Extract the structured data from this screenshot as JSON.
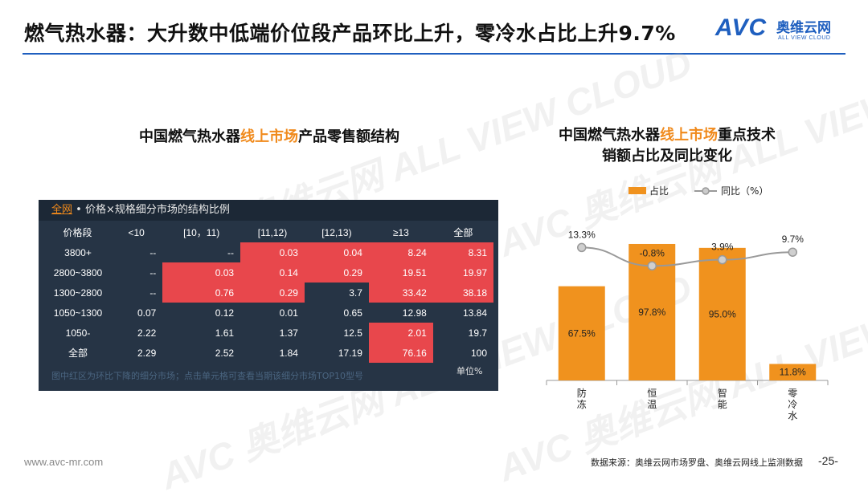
{
  "page": {
    "title": "燃气热水器：大升数中低端价位段产品环比上升，零冷水占比上升9.7%",
    "logo": {
      "avc": "AVC",
      "cn": "奥维云网",
      "en": "ALL VIEW CLOUD"
    },
    "watermark": "AVC 奥维云网 ALL VIEW CLOUD",
    "footer_url": "www.avc-mr.com",
    "footer_source": "数据来源：奥维云网市场罗盘、奥维云网线上监测数据",
    "page_number": "-25-"
  },
  "left": {
    "title_prefix": "中国燃气热水器",
    "title_highlight": "线上市场",
    "title_suffix": "产品零售额结构",
    "table_header_all": "全网",
    "table_header_rest": " • 价格×规格细分市场的结构比例",
    "note": "图中红区为环比下降的细分市场；点击单元格可查看当期该细分市场TOP10型号",
    "unit": "单位%"
  },
  "table": {
    "columns": [
      "价格段",
      "<10",
      "[10，11)",
      "[11,12)",
      "[12,13)",
      "≥13",
      "全部"
    ],
    "rows": [
      {
        "label": "3800+",
        "cells": [
          "--",
          "--",
          "0.03",
          "0.04",
          "8.24",
          "8.31"
        ],
        "red": [
          false,
          false,
          true,
          true,
          true,
          true
        ]
      },
      {
        "label": "2800~3800",
        "cells": [
          "--",
          "0.03",
          "0.14",
          "0.29",
          "19.51",
          "19.97"
        ],
        "red": [
          false,
          true,
          true,
          true,
          true,
          true
        ]
      },
      {
        "label": "1300~2800",
        "cells": [
          "--",
          "0.76",
          "0.29",
          "3.7",
          "33.42",
          "38.18"
        ],
        "red": [
          false,
          true,
          true,
          false,
          true,
          true
        ]
      },
      {
        "label": "1050~1300",
        "cells": [
          "0.07",
          "0.12",
          "0.01",
          "0.65",
          "12.98",
          "13.84"
        ],
        "red": [
          false,
          false,
          false,
          false,
          false,
          false
        ]
      },
      {
        "label": "1050-",
        "cells": [
          "2.22",
          "1.61",
          "1.37",
          "12.5",
          "2.01",
          "19.7"
        ],
        "red": [
          false,
          false,
          false,
          false,
          true,
          false
        ]
      },
      {
        "label": "全部",
        "cells": [
          "2.29",
          "2.52",
          "1.84",
          "17.19",
          "76.16",
          "100"
        ],
        "red": [
          false,
          false,
          false,
          false,
          true,
          false
        ]
      }
    ]
  },
  "right": {
    "title_line1_prefix": "中国燃气热水器",
    "title_line1_highlight": "线上市场",
    "title_line1_suffix": "重点技术",
    "title_line2": "销额占比及同比变化"
  },
  "chart_data": {
    "type": "bar",
    "categories": [
      "防冻",
      "恒温",
      "智能",
      "零冷水"
    ],
    "series": [
      {
        "name": "占比",
        "type": "bar",
        "values": [
          67.5,
          97.8,
          95.0,
          11.8
        ],
        "labels": [
          "67.5%",
          "97.8%",
          "95.0%",
          "11.8%"
        ],
        "color": "#f0921e"
      },
      {
        "name": "同比（%）",
        "type": "line",
        "values": [
          13.3,
          -0.8,
          3.9,
          9.7
        ],
        "labels": [
          "13.3%",
          "-0.8%",
          "3.9%",
          "9.7%"
        ],
        "color": "#999999"
      }
    ],
    "bar_ylim": [
      0,
      130
    ],
    "line_ylim": [
      -40,
      40
    ]
  }
}
